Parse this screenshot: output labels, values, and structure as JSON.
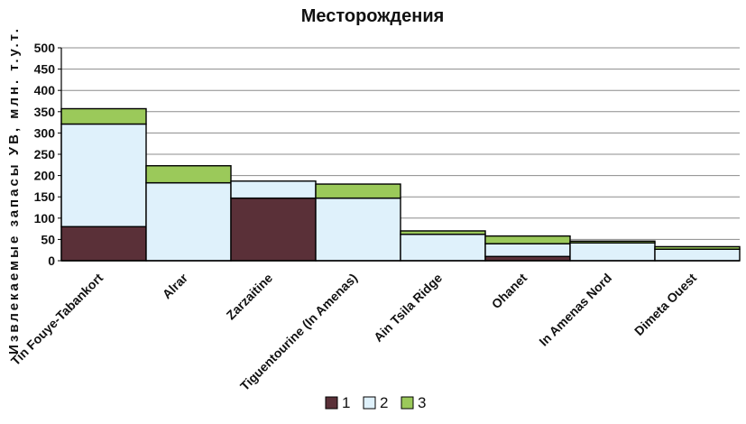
{
  "chart_data": {
    "type": "bar",
    "stacked": true,
    "title": "Месторождения",
    "ylabel": "Извлекаемые запасы УВ,   млн. т.у.т.",
    "xlabel": "",
    "ylim": [
      0,
      500
    ],
    "yticks": [
      0,
      50,
      100,
      150,
      200,
      250,
      300,
      350,
      400,
      450,
      500
    ],
    "grid": true,
    "legend_position": "bottom",
    "categories": [
      "Tin Fouye-Tabankort",
      "Alrar",
      "Zarzaitine",
      "Tiguentourine (In Amenas)",
      "Ain Tsila Ridge",
      "Ohanet",
      "In Amenas Nord",
      "Dimeta Ouest"
    ],
    "category_widths": [
      1,
      1,
      1,
      1,
      1,
      1,
      1,
      1
    ],
    "series": [
      {
        "name": "1",
        "color": "#5a3038",
        "values": [
          80,
          0,
          147,
          0,
          0,
          10,
          0,
          0
        ]
      },
      {
        "name": "2",
        "color": "#dff1fb",
        "values": [
          241,
          183,
          40,
          147,
          62,
          30,
          42,
          27
        ]
      },
      {
        "name": "3",
        "color": "#9bc95a",
        "values": [
          36,
          40,
          0,
          33,
          8,
          18,
          4,
          6
        ]
      }
    ]
  }
}
